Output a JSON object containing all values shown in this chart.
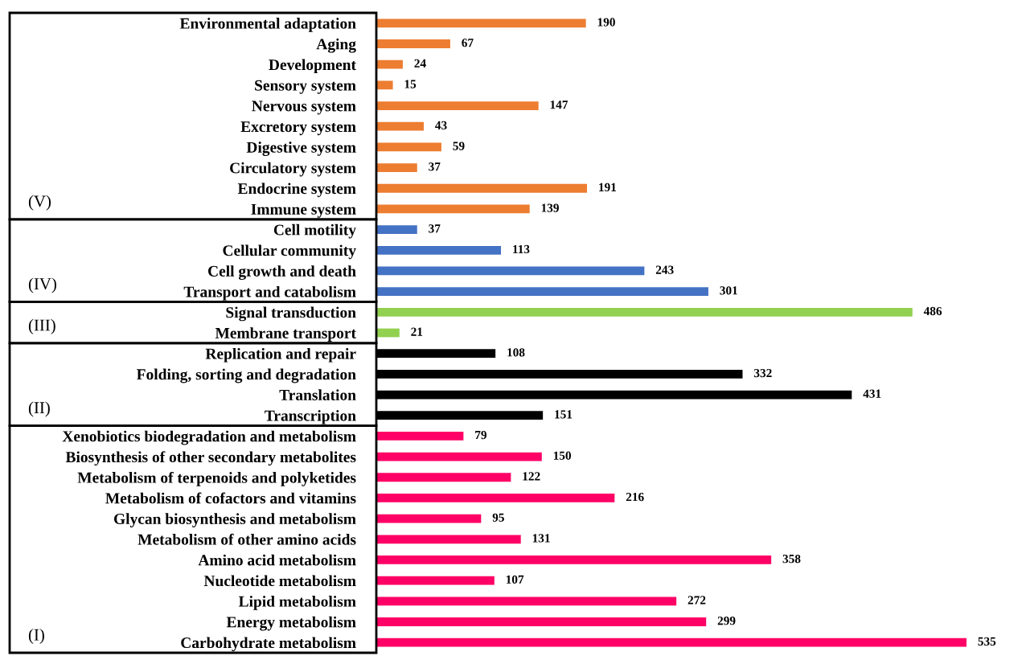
{
  "chart_data": {
    "type": "bar",
    "orientation": "horizontal",
    "data_labels": true,
    "categories": [
      "Environmental adaptation",
      "Aging",
      "Development",
      "Sensory system",
      "Nervous system",
      "Excretory system",
      "Digestive system",
      "Circulatory system",
      "Endocrine system",
      "Immune system",
      "Cell motility",
      "Cellular community",
      "Cell growth and death",
      "Transport and catabolism",
      "Signal transduction",
      "Membrane transport",
      "Replication and repair",
      "Folding, sorting and degradation",
      "Translation",
      "Transcription",
      "Xenobiotics biodegradation and metabolism",
      "Biosynthesis of other secondary metabolites",
      "Metabolism of terpenoids and polyketides",
      "Metabolism of cofactors and vitamins",
      "Glycan biosynthesis and metabolism",
      "Metabolism of other amino acids",
      "Amino acid metabolism",
      "Nucleotide metabolism",
      "Lipid metabolism",
      "Energy metabolism",
      "Carbohydrate metabolism"
    ],
    "values": [
      190,
      67,
      24,
      15,
      147,
      43,
      59,
      37,
      191,
      139,
      37,
      113,
      243,
      301,
      486,
      21,
      108,
      332,
      431,
      151,
      79,
      150,
      122,
      216,
      95,
      131,
      358,
      107,
      272,
      299,
      535
    ],
    "colors": [
      "#ed7d31",
      "#ed7d31",
      "#ed7d31",
      "#ed7d31",
      "#ed7d31",
      "#ed7d31",
      "#ed7d31",
      "#ed7d31",
      "#ed7d31",
      "#ed7d31",
      "#4472c4",
      "#4472c4",
      "#4472c4",
      "#4472c4",
      "#92d050",
      "#92d050",
      "#000000",
      "#000000",
      "#000000",
      "#000000",
      "#ff0066",
      "#ff0066",
      "#ff0066",
      "#ff0066",
      "#ff0066",
      "#ff0066",
      "#ff0066",
      "#ff0066",
      "#ff0066",
      "#ff0066",
      "#ff0066"
    ],
    "annotations": [
      "(V)",
      "(IV)",
      "(III)",
      "(II)",
      "(I)"
    ]
  }
}
